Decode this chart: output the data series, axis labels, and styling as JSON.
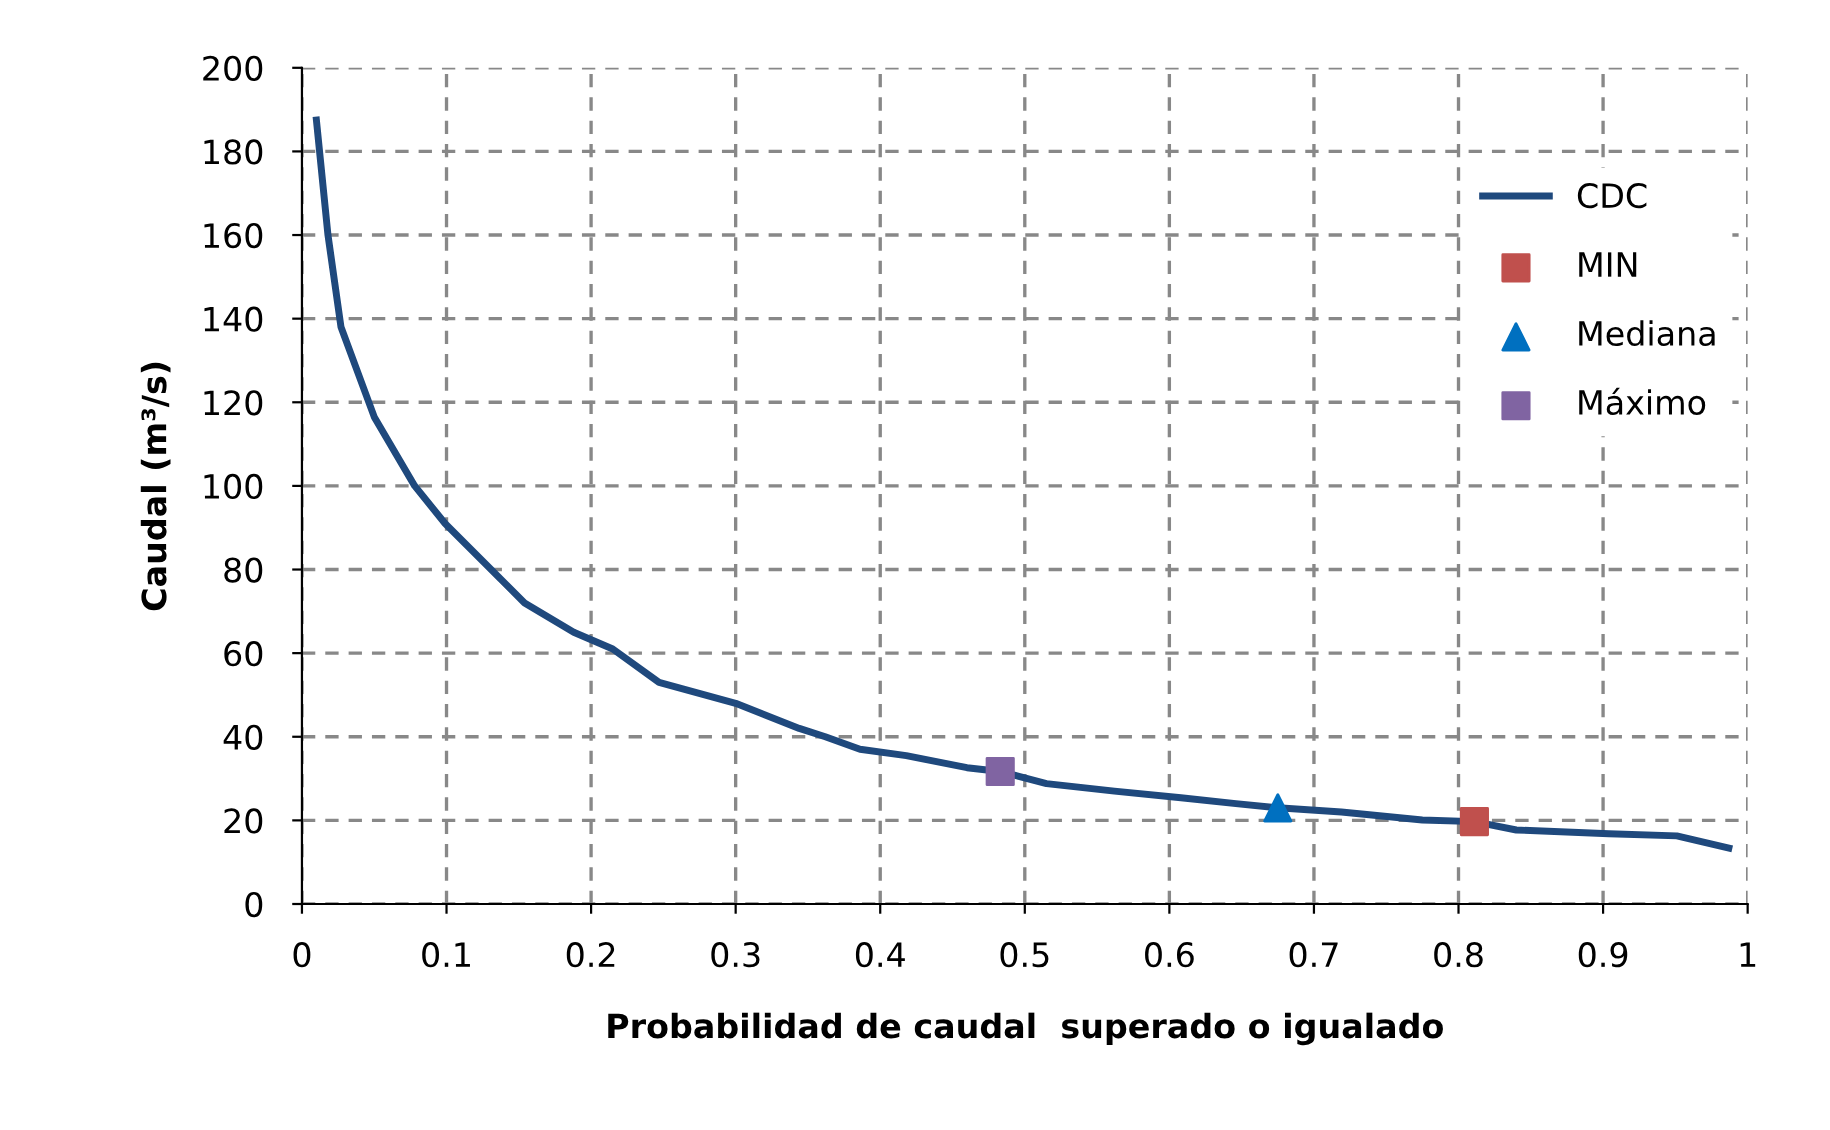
{
  "chart_data": {
    "type": "line",
    "xlabel": "Probabilidad de caudal  superado o igualado",
    "ylabel": "Caudal (m³/s)",
    "xlim": [
      0,
      1
    ],
    "xticks": [
      0,
      0.1,
      0.2,
      0.3,
      0.4,
      0.5,
      0.6,
      0.7,
      0.8,
      0.9,
      1
    ],
    "ylim": [
      0,
      200
    ],
    "yticks": [
      0,
      20,
      40,
      60,
      80,
      100,
      120,
      140,
      160,
      180,
      200
    ],
    "grid": true,
    "legend": "right",
    "line_style": "solid",
    "series": [
      {
        "name": "CDC",
        "marker": "none",
        "color": "#1f497d",
        "x": [
          0.01,
          0.018,
          0.027,
          0.05,
          0.078,
          0.099,
          0.154,
          0.188,
          0.215,
          0.247,
          0.3,
          0.344,
          0.362,
          0.386,
          0.418,
          0.46,
          0.483,
          0.515,
          0.562,
          0.608,
          0.646,
          0.675,
          0.719,
          0.775,
          0.811,
          0.84,
          0.904,
          0.951,
          0.987
        ],
        "values": [
          187.5,
          160,
          138,
          116.5,
          100,
          91,
          72,
          65,
          61,
          53,
          48,
          42,
          40,
          37,
          35.5,
          32.6,
          31.7,
          28.8,
          27,
          25.4,
          24,
          23,
          22,
          20.1,
          19.7,
          17.7,
          16.8,
          16.3,
          13.4
        ]
      },
      {
        "name": "MIN",
        "type": "scatter",
        "marker": "square",
        "color": "#c0504d",
        "x": [
          0.811
        ],
        "values": [
          19.7
        ]
      },
      {
        "name": "Mediana",
        "type": "scatter",
        "marker": "triangle",
        "color": "#0070c0",
        "x": [
          0.675
        ],
        "values": [
          23
        ]
      },
      {
        "name": "Máximo",
        "type": "scatter",
        "marker": "square",
        "color": "#8064a2",
        "x": [
          0.483
        ],
        "values": [
          31.7
        ]
      }
    ]
  }
}
